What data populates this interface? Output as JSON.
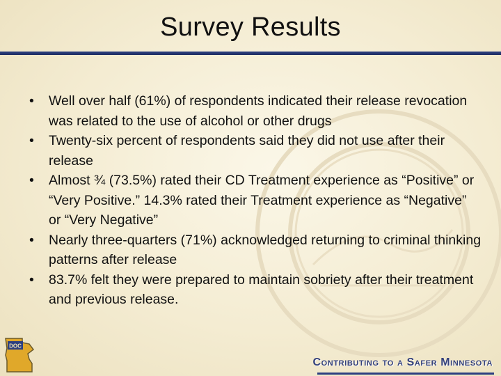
{
  "slide": {
    "title": "Survey Results",
    "bullets": [
      "Well over half (61%) of respondents indicated their release revocation was related to the use of alcohol or other drugs",
      "Twenty-six percent of respondents said they did not use after their release",
      "Almost ¾ (73.5%) rated their CD Treatment experience as “Positive” or “Very Positive.”  14.3% rated their Treatment experience as “Negative” or “Very Negative”",
      "Nearly three-quarters (71%) acknowledged returning to criminal thinking patterns after release",
      "83.7% felt they were prepared to maintain sobriety after their treatment and previous release."
    ],
    "bullet_glyph": "•"
  },
  "footer": {
    "logo_text": "DOC",
    "tagline": "Contributing to a Safer Minnesota"
  },
  "watermark": {
    "icon": "minnesota-state-seal-watermark"
  },
  "colors": {
    "background": "#f6efd9",
    "title_rule": "#2c3f80",
    "tagline": "#33407a",
    "text": "#111111"
  }
}
